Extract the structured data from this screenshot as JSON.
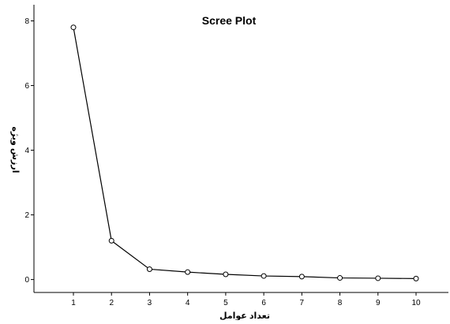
{
  "chart_data": {
    "type": "line",
    "title": "Scree Plot",
    "xlabel": "تعداد عوامل",
    "ylabel": "ارزش ویژه",
    "x": [
      1,
      2,
      3,
      4,
      5,
      6,
      7,
      8,
      9,
      10
    ],
    "series": [
      {
        "values": [
          7.8,
          1.2,
          0.32,
          0.23,
          0.16,
          0.11,
          0.09,
          0.05,
          0.04,
          0.03
        ]
      }
    ],
    "x_ticks": [
      "1",
      "2",
      "3",
      "4",
      "5",
      "6",
      "7",
      "8",
      "9",
      "10"
    ],
    "y_ticks": [
      "0",
      "2",
      "4",
      "6",
      "8"
    ],
    "ylim": [
      -0.4,
      8.5
    ],
    "grid": false,
    "marker": "open-circle",
    "colors": {
      "line": "#000000",
      "axis": "#000000",
      "background": "#ffffff"
    }
  }
}
